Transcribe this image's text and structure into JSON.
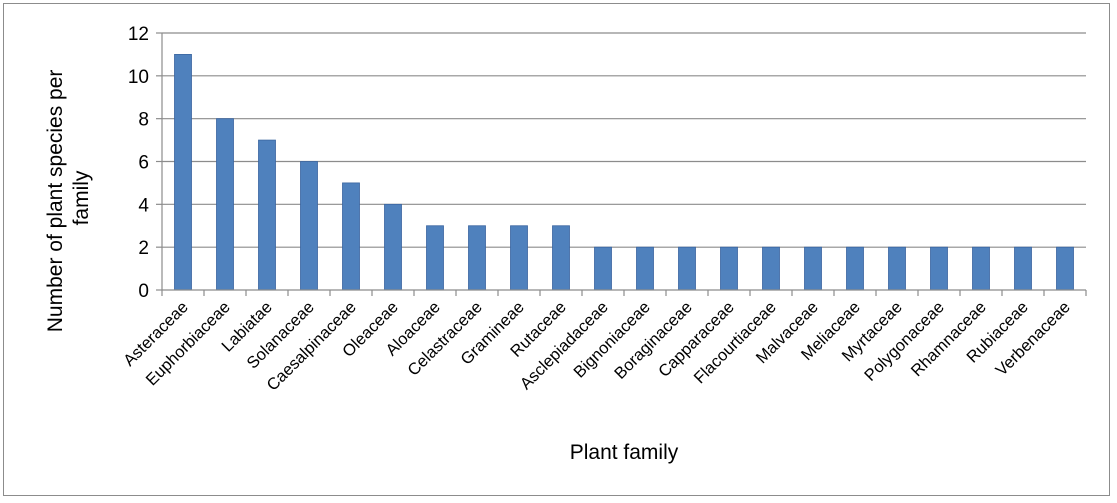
{
  "chart_data": {
    "type": "bar",
    "title": "",
    "xlabel": "Plant family",
    "ylabel_lines": [
      "Number of plant species per",
      "family"
    ],
    "categories": [
      "Asteraceae",
      "Euphorbiaceae",
      "Labiatae",
      "Solanaceae",
      "Caesalpinaceae",
      "Oleaceae",
      "Aloaceae",
      "Celastraceae",
      "Gramineae",
      "Rutaceae",
      "Asclepiadaceae",
      "Bignoniaceae",
      "Boraginaceae",
      "Capparaceae",
      "Flacourtiaceae",
      "Malvaceae",
      "Meliaceae",
      "Myrtaceae",
      "Polygonaceae",
      "Rhamnaceae",
      "Rubiaceae",
      "Verbenaceae"
    ],
    "values": [
      11,
      8,
      7,
      6,
      5,
      4,
      3,
      3,
      3,
      3,
      2,
      2,
      2,
      2,
      2,
      2,
      2,
      2,
      2,
      2,
      2,
      2
    ],
    "ylim": [
      0,
      12
    ],
    "yticks": [
      "0",
      "2",
      "4",
      "6",
      "8",
      "10",
      "12"
    ],
    "grid": true,
    "legend": "none",
    "bar_color": "#4f81bd",
    "bar_edge_color": "#3a65a0",
    "grid_color": "#8c8c8c"
  }
}
